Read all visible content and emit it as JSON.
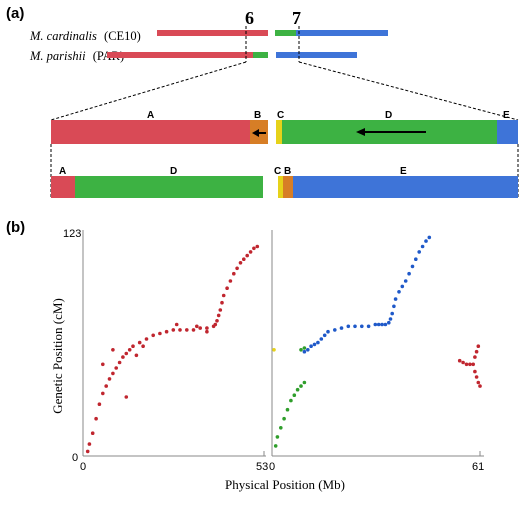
{
  "panel_a": {
    "label": "(a)",
    "chromosomes": [
      "6",
      "7"
    ],
    "species": [
      {
        "name": "M. cardinalis",
        "code": "(CE10)"
      },
      {
        "name": "M. parishii",
        "code": "(PAR)"
      }
    ],
    "segment_labels_top": [
      "A",
      "B",
      "C",
      "D",
      "E"
    ],
    "segment_labels_bottom": [
      "A",
      "D",
      "C",
      "B",
      "E"
    ]
  },
  "panel_b": {
    "label": "(b)",
    "ylabel": "Genetic Position (cM)",
    "xlabel": "Physical Position (Mb)",
    "y_top_tick": "123",
    "y_zero_tick": "0",
    "left_x_ticks": [
      "0",
      "53"
    ],
    "right_x_ticks": [
      "0",
      "61"
    ]
  },
  "colors": {
    "red": "#d94a56",
    "green": "#3db243",
    "blue": "#3e74d8",
    "orange": "#e08a1c",
    "yellow": "#e6d21a",
    "dot_red": "#c0262f",
    "dot_green": "#2f9e2b",
    "dot_blue": "#1f59c9"
  },
  "chart_data": [
    {
      "type": "scatter",
      "xlim": [
        0,
        53
      ],
      "ylim": [
        0,
        123
      ],
      "series": [
        {
          "color": "red",
          "points": [
            [
              0.5,
              2
            ],
            [
              1,
              6
            ],
            [
              2,
              12
            ],
            [
              3,
              20
            ],
            [
              4,
              28
            ],
            [
              5,
              34
            ],
            [
              6,
              38
            ],
            [
              7,
              42
            ],
            [
              8,
              45
            ],
            [
              9,
              48
            ],
            [
              10,
              51
            ],
            [
              11,
              54
            ],
            [
              12,
              56
            ],
            [
              13,
              58
            ],
            [
              14,
              60
            ],
            [
              16,
              62
            ],
            [
              18,
              64
            ],
            [
              20,
              66
            ],
            [
              22,
              67
            ],
            [
              24,
              68
            ],
            [
              26,
              69
            ],
            [
              28,
              69
            ],
            [
              30,
              69
            ],
            [
              32,
              69
            ],
            [
              34,
              70
            ],
            [
              36,
              70
            ],
            [
              38,
              71
            ],
            [
              38.5,
              72
            ],
            [
              39,
              74
            ],
            [
              39.5,
              77
            ],
            [
              40,
              80
            ],
            [
              40.5,
              84
            ],
            [
              41,
              88
            ],
            [
              42,
              92
            ],
            [
              43,
              96
            ],
            [
              44,
              100
            ],
            [
              45,
              103
            ],
            [
              46,
              106
            ],
            [
              47,
              108
            ],
            [
              48,
              110
            ],
            [
              49,
              112
            ],
            [
              50,
              114
            ],
            [
              51,
              115
            ],
            [
              5,
              50
            ],
            [
              12,
              32
            ],
            [
              8,
              58
            ],
            [
              15,
              55
            ],
            [
              17,
              60
            ],
            [
              27,
              72
            ],
            [
              33,
              71
            ],
            [
              36,
              68
            ]
          ]
        }
      ]
    },
    {
      "type": "scatter",
      "xlim": [
        0,
        61
      ],
      "ylim": [
        0,
        123
      ],
      "series": [
        {
          "color": "green",
          "points": [
            [
              0.5,
              5
            ],
            [
              1,
              10
            ],
            [
              2,
              15
            ],
            [
              3,
              20
            ],
            [
              4,
              25
            ],
            [
              5,
              30
            ],
            [
              6,
              33
            ],
            [
              7,
              36
            ],
            [
              8,
              38
            ],
            [
              9,
              40
            ],
            [
              8,
              58
            ],
            [
              9,
              59
            ]
          ]
        },
        {
          "color": "blue",
          "points": [
            [
              9,
              57
            ],
            [
              10,
              58
            ],
            [
              11,
              60
            ],
            [
              12,
              61
            ],
            [
              13,
              62
            ],
            [
              14,
              64
            ],
            [
              15,
              66
            ],
            [
              16,
              68
            ],
            [
              18,
              69
            ],
            [
              20,
              70
            ],
            [
              22,
              71
            ],
            [
              24,
              71
            ],
            [
              26,
              71
            ],
            [
              28,
              71
            ],
            [
              30,
              72
            ],
            [
              31,
              72
            ],
            [
              32,
              72
            ],
            [
              33,
              72
            ],
            [
              34,
              73
            ],
            [
              34.5,
              75
            ],
            [
              35,
              78
            ],
            [
              35.5,
              82
            ],
            [
              36,
              86
            ],
            [
              37,
              90
            ],
            [
              38,
              93
            ],
            [
              39,
              96
            ],
            [
              40,
              100
            ],
            [
              41,
              104
            ],
            [
              42,
              108
            ],
            [
              43,
              112
            ],
            [
              44,
              115
            ],
            [
              45,
              118
            ],
            [
              46,
              120
            ]
          ]
        },
        {
          "color": "red",
          "points": [
            [
              55,
              52
            ],
            [
              56,
              51
            ],
            [
              57,
              50
            ],
            [
              58,
              50
            ],
            [
              59,
              50
            ],
            [
              59.5,
              54
            ],
            [
              60,
              57
            ],
            [
              60.5,
              60
            ],
            [
              59.5,
              46
            ],
            [
              60,
              43
            ],
            [
              60.5,
              40
            ],
            [
              61,
              38
            ]
          ]
        },
        {
          "color": "yellow",
          "points": [
            [
              0,
              58
            ]
          ]
        }
      ]
    }
  ]
}
